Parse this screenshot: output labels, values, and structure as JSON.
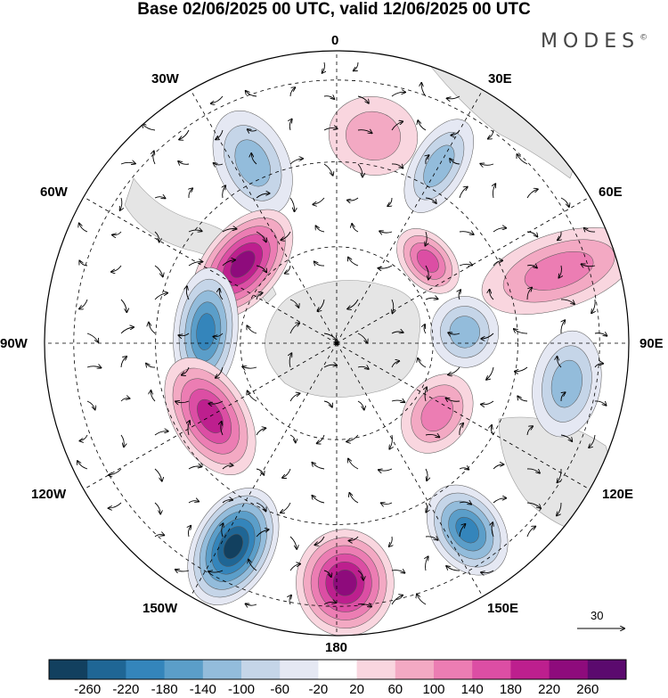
{
  "title": "Base 02/06/2025 00 UTC, valid 12/06/2025 00 UTC",
  "brand": "MODES",
  "brand_mark": "©",
  "longitude_labels": {
    "lon_0": "0",
    "lon_30e": "30E",
    "lon_60e": "60E",
    "lon_90e": "90E",
    "lon_120e": "120E",
    "lon_150e": "150E",
    "lon_180": "180",
    "lon_150w": "150W",
    "lon_120w": "120W",
    "lon_90w": "90W",
    "lon_60w": "60W",
    "lon_30w": "30W"
  },
  "reference_vector": "30",
  "colorbar": {
    "labels": [
      "-260",
      "-220",
      "-180",
      "-140",
      "-100",
      "-60",
      "-20",
      "20",
      "60",
      "100",
      "140",
      "180",
      "220",
      "260"
    ],
    "colors": [
      "#12405f",
      "#1f6695",
      "#3485bb",
      "#5b9ec9",
      "#93bcdb",
      "#c5d5e8",
      "#e5e8f3",
      "#ffffff",
      "#f9d6df",
      "#f3a9c3",
      "#ec7db3",
      "#dc4ea4",
      "#bd1f8e",
      "#8e0b7c",
      "#5b0a6e"
    ]
  },
  "map": {
    "projection": "south-polar-stereographic",
    "land_color": "#e5e5e5",
    "anomalies": [
      {
        "lon_deg_screen": 80,
        "dist": 0.72,
        "rx": 50,
        "ry": 44,
        "level": 9,
        "name": "anomaly-positive-0e"
      },
      {
        "lon_deg_screen": 115,
        "dist": 0.68,
        "rx": 40,
        "ry": 62,
        "level": 4,
        "name": "anomaly-negative-20w"
      },
      {
        "lon_deg_screen": 60,
        "dist": 0.7,
        "rx": 30,
        "ry": 58,
        "level": 4,
        "name": "anomaly-negative-30e"
      },
      {
        "lon_deg_screen": 140,
        "dist": 0.42,
        "rx": 72,
        "ry": 42,
        "level": 13,
        "name": "anomaly-positive-55w"
      },
      {
        "lon_deg_screen": 175,
        "dist": 0.45,
        "rx": 72,
        "ry": 36,
        "level": 2,
        "name": "anomaly-negative-85w"
      },
      {
        "lon_deg_screen": 210,
        "dist": 0.5,
        "rx": 72,
        "ry": 42,
        "level": 12,
        "name": "anomaly-positive-115w"
      },
      {
        "lon_deg_screen": 243,
        "dist": 0.78,
        "rx": 45,
        "ry": 70,
        "level": 0,
        "name": "anomaly-negative-150w"
      },
      {
        "lon_deg_screen": 272,
        "dist": 0.82,
        "rx": 55,
        "ry": 60,
        "level": 13,
        "name": "anomaly-positive-180"
      },
      {
        "lon_deg_screen": 305,
        "dist": 0.78,
        "rx": 40,
        "ry": 55,
        "level": 2,
        "name": "anomaly-negative-150e"
      },
      {
        "lon_deg_screen": 325,
        "dist": 0.42,
        "rx": 48,
        "ry": 36,
        "level": 10,
        "name": "anomaly-positive-130e"
      },
      {
        "lon_deg_screen": 350,
        "dist": 0.8,
        "rx": 60,
        "ry": 38,
        "level": 4,
        "name": "anomaly-negative-100e"
      },
      {
        "lon_deg_screen": 5,
        "dist": 0.44,
        "rx": 40,
        "ry": 38,
        "level": 4,
        "name": "anomaly-negative-90e"
      },
      {
        "lon_deg_screen": 18,
        "dist": 0.8,
        "rx": 42,
        "ry": 90,
        "level": 10,
        "name": "anomaly-positive-70e"
      },
      {
        "lon_deg_screen": 42,
        "dist": 0.42,
        "rx": 42,
        "ry": 28,
        "level": 11,
        "name": "anomaly-positive-45e"
      }
    ]
  }
}
